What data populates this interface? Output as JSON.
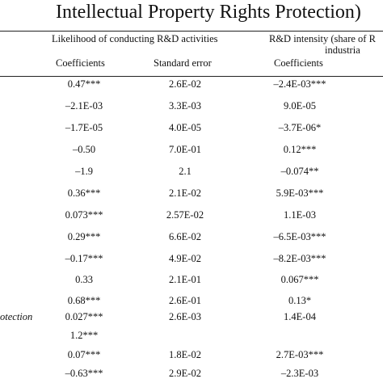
{
  "title": "Intellectual Property Rights Protection)",
  "headers": {
    "group1": "Likelihood of conducting R&D activities",
    "group2_line1": "R&D intensity (share of R",
    "group2_line2": "industria",
    "col1": "Coefficients",
    "col2": "Standard error",
    "col3": "Coefficients"
  },
  "rows": [
    {
      "label": "",
      "c1": "0.47***",
      "c2": "2.6E-02",
      "c3": "–2.4E-03***"
    },
    {
      "label": "",
      "c1": "–2.1E-03",
      "c2": "3.3E-03",
      "c3": "9.0E-05"
    },
    {
      "label": "",
      "c1": "–1.7E-05",
      "c2": "4.0E-05",
      "c3": "–3.7E-06*"
    },
    {
      "label": "",
      "c1": "–0.50",
      "c2": "7.0E-01",
      "c3": "0.12***"
    },
    {
      "label": "",
      "c1": "–1.9",
      "c2": "2.1",
      "c3": "–0.074**"
    },
    {
      "label": "",
      "c1": "0.36***",
      "c2": "2.1E-02",
      "c3": "5.9E-03***"
    },
    {
      "label": "",
      "c1": "0.073***",
      "c2": "2.57E-02",
      "c3": "1.1E-03"
    },
    {
      "label": "",
      "c1": "0.29***",
      "c2": "6.6E-02",
      "c3": "–6.5E-03***"
    },
    {
      "label": "",
      "c1": "–0.17***",
      "c2": "4.9E-02",
      "c3": "–8.2E-03***"
    },
    {
      "label": "",
      "c1": "0.33",
      "c2": "2.1E-01",
      "c3": "0.067***"
    },
    {
      "label": "",
      "c1": "0.68***",
      "c2": "2.6E-01",
      "c3": "0.13*"
    },
    {
      "label": "otection",
      "c1": "0.027***",
      "c2": "2.6E-03",
      "c3": "1.4E-04"
    },
    {
      "label": "",
      "c1": "1.2***",
      "c2": "",
      "c3": ""
    },
    {
      "label": "",
      "c1": "0.07***",
      "c2": "1.8E-02",
      "c3": "2.7E-03***"
    },
    {
      "label": "",
      "c1": "–0.63***",
      "c2": "2.9E-02",
      "c3": "–2.3E-03"
    }
  ]
}
